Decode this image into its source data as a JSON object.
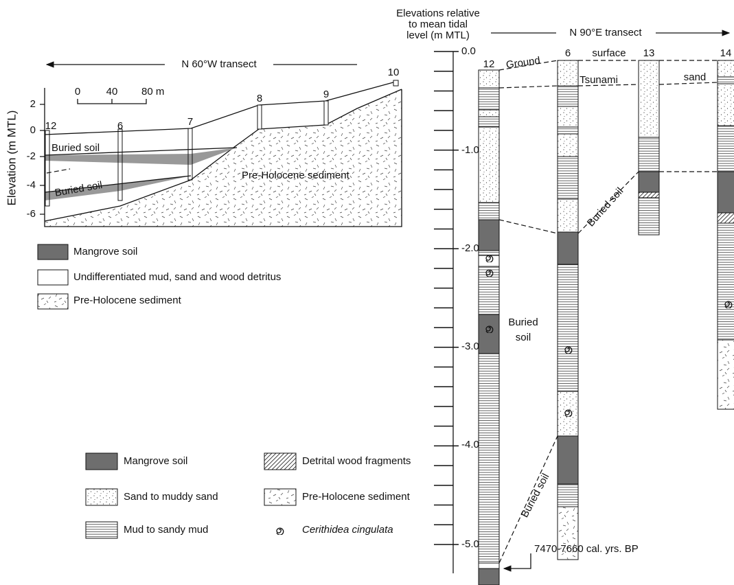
{
  "left_panel": {
    "transect": "N 60°W transect",
    "y_axis_label": "Elevation (m MTL)",
    "y_ticks": [
      "2",
      "0",
      "-2",
      "-4",
      "-6"
    ],
    "scale_bar": [
      "0",
      "40",
      "80 m"
    ],
    "boreholes": [
      "12",
      "6",
      "7",
      "8",
      "9",
      "10"
    ],
    "labels": [
      "Buried soil",
      "Buried soil",
      "Pre-Holocene sediment"
    ],
    "legend": [
      "Mangrove soil",
      "Undifferentiated mud, sand and wood detritus",
      "Pre-Holocene sediment"
    ]
  },
  "right_panel": {
    "axis_title": [
      "Elevations relative",
      "to mean tidal",
      "level (m MTL)"
    ],
    "transect": "N 90°E transect",
    "y_ticks": [
      "0.0",
      "-1.0",
      "-2.0",
      "-3.0",
      "-4.0",
      "-5.0"
    ],
    "cores": [
      "12",
      "6",
      "13",
      "14"
    ],
    "labels": {
      "ground": "Ground",
      "surface": "surface",
      "tsunami": "Tsunami",
      "sand": "sand",
      "buried_soil_upper": "Buried soil",
      "buried_soil_lower": "Buried soil",
      "buried_soil_core": [
        "Buried",
        "soil"
      ]
    },
    "date": "7470-7660 cal. yrs. BP"
  },
  "legend": [
    "Mangrove soil",
    "Sand to muddy sand",
    "Mud to sandy mud",
    "Detrital wood fragments",
    "Pre-Holocene sediment",
    "Cerithidea cingulata"
  ]
}
